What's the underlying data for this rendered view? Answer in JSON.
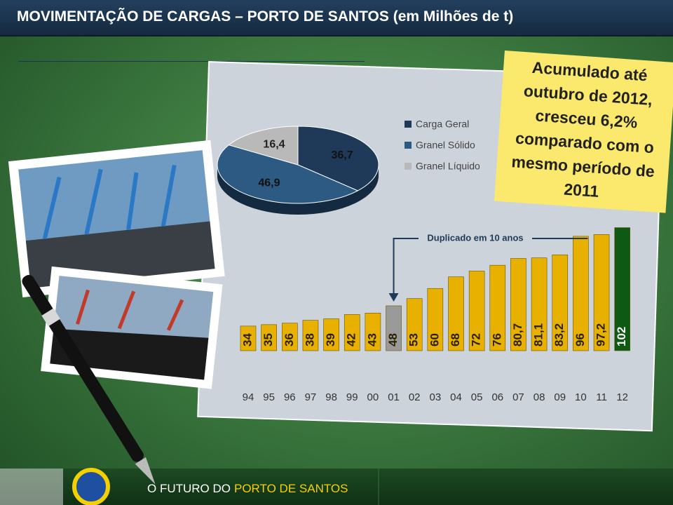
{
  "header": {
    "title": "MOVIMENTAÇÃO DE CARGAS – PORTO DE SANTOS (em Milhões de t)"
  },
  "note": {
    "lines": [
      "Acumulado até",
      "outubro de 2012,",
      "cresceu 6,2%",
      "comparado com o",
      "mesmo período de",
      "2011"
    ]
  },
  "footer": {
    "text_1": "O FUTURO DO",
    "text_2": "PORTO DE SANTOS"
  },
  "chart_data": [
    {
      "type": "pie",
      "series": [
        {
          "name": "Carga Geral",
          "color": "#1e3a58",
          "values": [
            36.7
          ],
          "value_labels": [
            "36,7"
          ]
        },
        {
          "name": "Granel Sólido",
          "color": "#2c5a82",
          "values": [
            46.9
          ],
          "value_labels": [
            "46,9"
          ]
        },
        {
          "name": "Granel Líquido",
          "color": "#b9b9b9",
          "values": [
            16.4
          ],
          "value_labels": [
            "16,4"
          ]
        }
      ]
    },
    {
      "type": "bar",
      "categories": [
        "94",
        "95",
        "96",
        "97",
        "98",
        "99",
        "00",
        "01",
        "02",
        "03",
        "04",
        "05",
        "06",
        "07",
        "08",
        "09",
        "10",
        "11",
        "12"
      ],
      "values": [
        34,
        35,
        36,
        38,
        39,
        42,
        43,
        48,
        53,
        60,
        68,
        72,
        76,
        80.7,
        81.1,
        83.2,
        96,
        97.2,
        102
      ],
      "value_labels": [
        "34",
        "35",
        "36",
        "38",
        "39",
        "42",
        "43",
        "48",
        "53",
        "60",
        "68",
        "72",
        "76",
        "80,7",
        "81,1",
        "83,2",
        "96",
        "97,2",
        "102"
      ],
      "colors": [
        "#e8b100",
        "#e8b100",
        "#e8b100",
        "#e8b100",
        "#e8b100",
        "#e8b100",
        "#e8b100",
        "#9a9a9a",
        "#e8b100",
        "#e8b100",
        "#e8b100",
        "#e8b100",
        "#e8b100",
        "#e8b100",
        "#e8b100",
        "#e8b100",
        "#e8b100",
        "#e8b100",
        "#0e5a14"
      ],
      "ylim": [
        17,
        110
      ],
      "annotation": "Duplicado em 10 anos"
    }
  ]
}
